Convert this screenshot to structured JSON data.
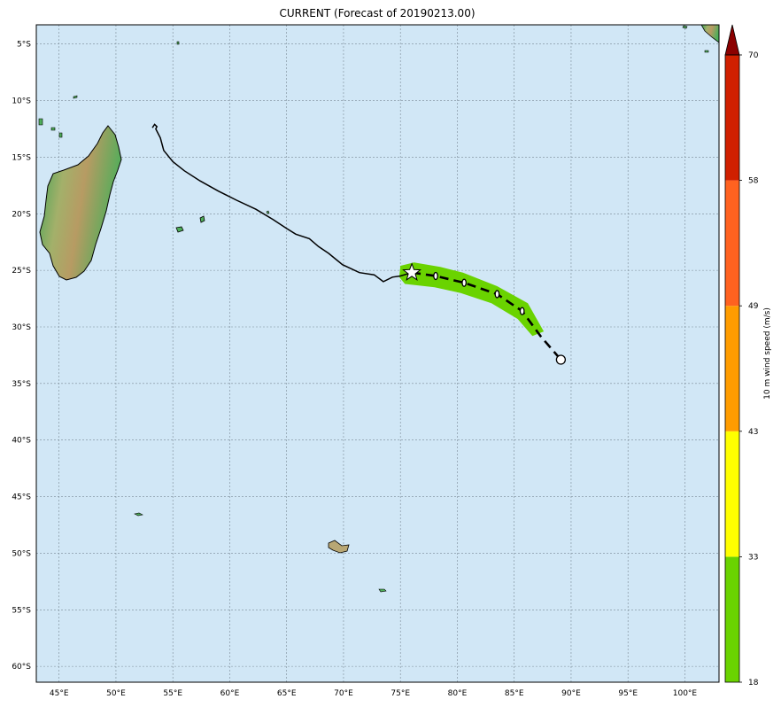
{
  "title": "CURRENT (Forecast of 20190213.00)",
  "map": {
    "lon_range": [
      43,
      103
    ],
    "lat_range": [
      -3.3,
      -61.4
    ],
    "ocean_color": "#d1e7f6",
    "grid": true,
    "lon_ticks": [
      {
        "lon": 45,
        "label": "45°E"
      },
      {
        "lon": 50,
        "label": "50°E"
      },
      {
        "lon": 55,
        "label": "55°E"
      },
      {
        "lon": 60,
        "label": "60°E"
      },
      {
        "lon": 65,
        "label": "65°E"
      },
      {
        "lon": 70,
        "label": "70°E"
      },
      {
        "lon": 75,
        "label": "75°E"
      },
      {
        "lon": 80,
        "label": "80°E"
      },
      {
        "lon": 85,
        "label": "85°E"
      },
      {
        "lon": 90,
        "label": "90°E"
      },
      {
        "lon": 95,
        "label": "95°E"
      },
      {
        "lon": 100,
        "label": "100°E"
      }
    ],
    "lat_ticks": [
      {
        "lat": -5,
        "label": "5°S"
      },
      {
        "lat": -10,
        "label": "10°S"
      },
      {
        "lat": -15,
        "label": "15°S"
      },
      {
        "lat": -20,
        "label": "20°S"
      },
      {
        "lat": -25,
        "label": "25°S"
      },
      {
        "lat": -30,
        "label": "30°S"
      },
      {
        "lat": -35,
        "label": "35°S"
      },
      {
        "lat": -40,
        "label": "40°S"
      },
      {
        "lat": -45,
        "label": "45°S"
      },
      {
        "lat": -50,
        "label": "50°S"
      },
      {
        "lat": -55,
        "label": "55°S"
      },
      {
        "lat": -60,
        "label": "60°S"
      }
    ]
  },
  "past_track": [
    [
      53.2,
      -12.4
    ],
    [
      53.4,
      -12.1
    ],
    [
      53.6,
      -12.3
    ],
    [
      53.5,
      -12.5
    ],
    [
      53.9,
      -13.3
    ],
    [
      54.2,
      -14.4
    ],
    [
      55.0,
      -15.4
    ],
    [
      56.0,
      -16.2
    ],
    [
      57.4,
      -17.1
    ],
    [
      59.0,
      -18.0
    ],
    [
      60.6,
      -18.8
    ],
    [
      62.3,
      -19.6
    ],
    [
      63.8,
      -20.5
    ],
    [
      65.0,
      -21.3
    ],
    [
      65.8,
      -21.8
    ],
    [
      67.0,
      -22.2
    ],
    [
      67.8,
      -22.9
    ],
    [
      68.7,
      -23.5
    ],
    [
      69.9,
      -24.5
    ],
    [
      71.4,
      -25.2
    ],
    [
      72.7,
      -25.4
    ],
    [
      73.5,
      -26.0
    ],
    [
      74.3,
      -25.6
    ],
    [
      75.0,
      -25.5
    ],
    [
      76.0,
      -25.2
    ]
  ],
  "forecast_track": [
    [
      76.0,
      -25.2
    ],
    [
      78.1,
      -25.5
    ],
    [
      80.6,
      -26.1
    ],
    [
      83.5,
      -27.1
    ],
    [
      85.7,
      -28.6
    ],
    [
      87.3,
      -30.8
    ],
    [
      89.1,
      -32.9
    ]
  ],
  "forecast_points": [
    [
      78.1,
      -25.5
    ],
    [
      80.6,
      -26.1
    ],
    [
      83.5,
      -27.1
    ],
    [
      85.7,
      -28.6
    ]
  ],
  "current_position": [
    76.0,
    -25.2
  ],
  "end_position": [
    89.1,
    -32.9
  ],
  "cone": [
    [
      75.0,
      -24.6
    ],
    [
      76.2,
      -24.3
    ],
    [
      78.5,
      -24.7
    ],
    [
      80.5,
      -25.2
    ],
    [
      83.5,
      -26.4
    ],
    [
      86.2,
      -27.9
    ],
    [
      87.6,
      -30.4
    ],
    [
      86.6,
      -30.8
    ],
    [
      85.3,
      -29.3
    ],
    [
      83.0,
      -27.9
    ],
    [
      80.3,
      -27.0
    ],
    [
      78.0,
      -26.5
    ],
    [
      75.4,
      -26.2
    ],
    [
      74.9,
      -25.6
    ]
  ],
  "cone_color": "#6ad300",
  "colorbar": {
    "label": "10 m wind speed (m/s)",
    "extend": "max",
    "bins": [
      {
        "from": 18,
        "to": 33,
        "color": "#6ad300"
      },
      {
        "from": 33,
        "to": 43,
        "color": "#ffff00"
      },
      {
        "from": 43,
        "to": 49,
        "color": "#ff9c00"
      },
      {
        "from": 49,
        "to": 58,
        "color": "#ff6220"
      },
      {
        "from": 58,
        "to": 70,
        "color": "#d02000"
      }
    ],
    "extend_color": "#8b0000",
    "tick_labels": [
      "18",
      "33",
      "43",
      "49",
      "58",
      "70"
    ]
  }
}
